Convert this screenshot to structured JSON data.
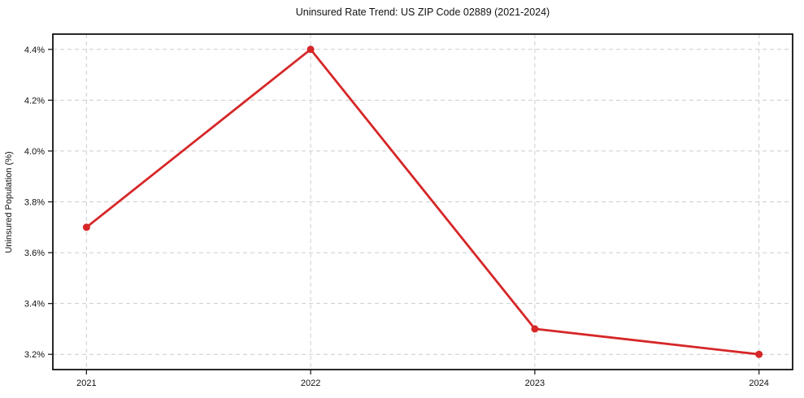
{
  "chart_data": {
    "type": "line",
    "title": "Uninsured Rate Trend: US ZIP Code 02889 (2021-2024)",
    "xlabel": "",
    "ylabel": "Uninsured Population (%)",
    "x": [
      2021,
      2022,
      2023,
      2024
    ],
    "values": [
      3.7,
      4.4,
      3.3,
      3.2
    ],
    "xticks": [
      2021,
      2022,
      2023,
      2024
    ],
    "xtick_labels": [
      "2021",
      "2022",
      "2023",
      "2024"
    ],
    "yticks": [
      3.2,
      3.4,
      3.6,
      3.8,
      4.0,
      4.2,
      4.4
    ],
    "ytick_labels": [
      "3.2%",
      "3.4%",
      "3.6%",
      "3.8%",
      "4.0%",
      "4.2%",
      "4.4%"
    ],
    "xlim": [
      2020.85,
      2024.15
    ],
    "ylim": [
      3.14,
      4.46
    ],
    "grid": true,
    "legend": false,
    "line_color": "#d62728",
    "grid_color": "#cccccc",
    "text_color": "#111111",
    "marker": "circle",
    "line_width": 2.8,
    "marker_radius": 4.5
  }
}
